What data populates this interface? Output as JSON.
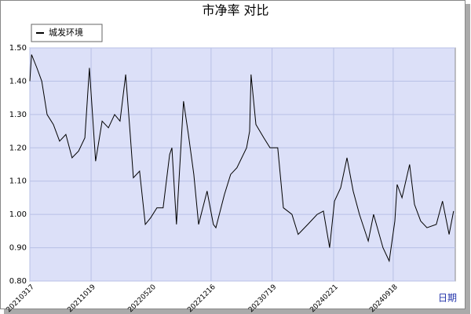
{
  "chart_data": {
    "type": "line",
    "title": "市净率  对比",
    "x_label": "日期",
    "x": [
      "2021-03-17",
      "2021-03-23",
      "2021-04-11",
      "2021-04-28",
      "2021-05-17",
      "2021-06-08",
      "2021-06-30",
      "2021-07-22",
      "2021-08-13",
      "2021-09-05",
      "2021-09-27",
      "2021-10-13",
      "2021-11-04",
      "2021-11-27",
      "2021-12-19",
      "2022-01-10",
      "2022-01-29",
      "2022-02-18",
      "2022-03-06",
      "2022-03-17",
      "2022-04-08",
      "2022-04-28",
      "2022-05-17",
      "2022-06-08",
      "2022-06-30",
      "2022-07-23",
      "2022-07-31",
      "2022-08-16",
      "2022-09-10",
      "2022-09-27",
      "2022-10-16",
      "2022-11-02",
      "2022-12-02",
      "2022-12-24",
      "2023-01-02",
      "2023-02-01",
      "2023-02-23",
      "2023-03-17",
      "2023-04-20",
      "2023-05-01",
      "2023-05-06",
      "2023-05-23",
      "2023-06-20",
      "2023-07-12",
      "2023-08-08",
      "2023-08-28",
      "2023-09-27",
      "2023-10-19",
      "2023-11-22",
      "2023-12-25",
      "2024-01-16",
      "2024-02-07",
      "2024-02-24",
      "2024-03-17",
      "2024-04-08",
      "2024-04-30",
      "2024-05-22",
      "2024-06-22",
      "2024-07-11",
      "2024-08-13",
      "2024-09-04",
      "2024-09-24",
      "2024-10-02",
      "2024-10-19",
      "2024-11-15",
      "2024-12-02",
      "2024-12-24",
      "2025-01-15",
      "2025-02-17",
      "2025-03-11",
      "2025-04-03",
      "2025-04-19"
    ],
    "series": [
      {
        "name": "城发环境",
        "color": "#000000",
        "values": [
          1.4,
          1.48,
          1.44,
          1.4,
          1.3,
          1.27,
          1.22,
          1.24,
          1.17,
          1.19,
          1.23,
          1.44,
          1.16,
          1.28,
          1.26,
          1.3,
          1.28,
          1.42,
          1.24,
          1.11,
          1.13,
          0.97,
          0.99,
          1.02,
          1.02,
          1.18,
          1.2,
          0.97,
          1.34,
          1.24,
          1.12,
          0.97,
          1.07,
          0.97,
          0.96,
          1.06,
          1.12,
          1.14,
          1.2,
          1.25,
          1.42,
          1.27,
          1.23,
          1.2,
          1.2,
          1.02,
          1.0,
          0.94,
          0.97,
          1.0,
          1.01,
          0.9,
          1.04,
          1.08,
          1.17,
          1.07,
          1.0,
          0.92,
          1.0,
          0.9,
          0.86,
          0.98,
          1.09,
          1.05,
          1.15,
          1.03,
          0.98,
          0.96,
          0.97,
          1.04,
          0.94,
          1.01
        ]
      }
    ],
    "xlim": [
      "2021-03-17",
      "2025-04-25"
    ],
    "xticks": [
      {
        "value": "2021-03-17",
        "label": "20210317"
      },
      {
        "value": "2021-10-19",
        "label": "20211019"
      },
      {
        "value": "2022-05-20",
        "label": "20220520"
      },
      {
        "value": "2022-12-16",
        "label": "20221216"
      },
      {
        "value": "2023-07-19",
        "label": "20230719"
      },
      {
        "value": "2024-02-21",
        "label": "20240221"
      },
      {
        "value": "2024-09-18",
        "label": "20240918"
      }
    ],
    "ylim": [
      0.8,
      1.5
    ],
    "yticks": [
      {
        "value": 0.8,
        "label": "0.80"
      },
      {
        "value": 0.9,
        "label": "0.90"
      },
      {
        "value": 1.0,
        "label": "1.00"
      },
      {
        "value": 1.1,
        "label": "1.10"
      },
      {
        "value": 1.2,
        "label": "1.20"
      },
      {
        "value": 1.3,
        "label": "1.30"
      },
      {
        "value": 1.4,
        "label": "1.40"
      },
      {
        "value": 1.5,
        "label": "1.50"
      }
    ],
    "grid": true,
    "legend": "top-left"
  }
}
